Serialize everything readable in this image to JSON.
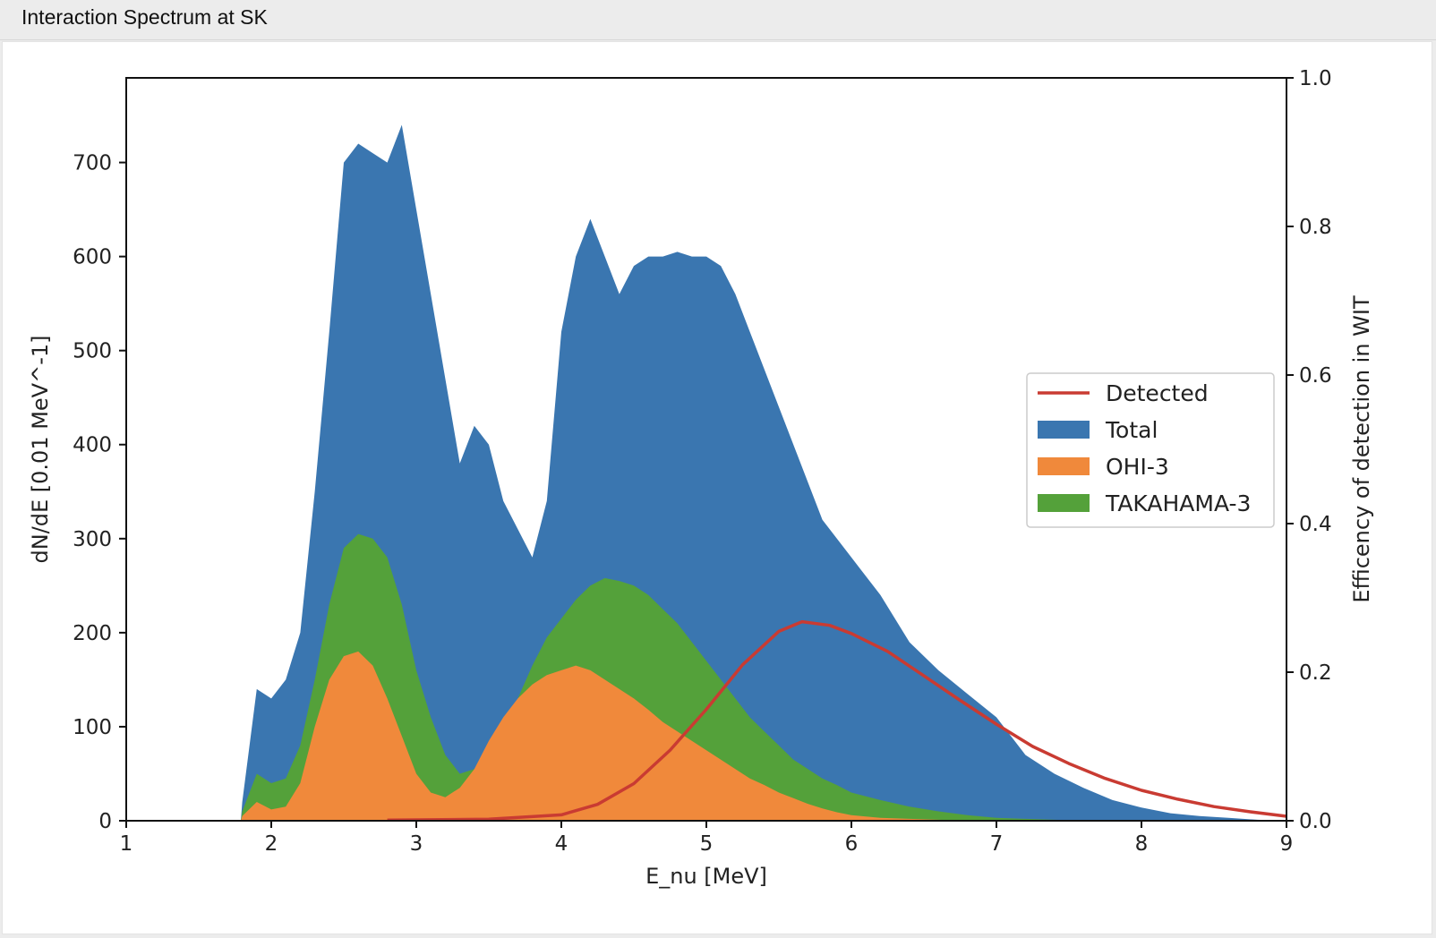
{
  "window": {
    "title": "Interaction Spectrum at SK"
  },
  "chart_data": {
    "type": "area",
    "title": "",
    "xlabel": "E_nu [MeV]",
    "ylabel": "dN/dE [0.01 MeV^-1]",
    "y2label": "Efficency of detection in WIT",
    "xlim": [
      1,
      9
    ],
    "ylim": [
      0,
      790
    ],
    "y2lim": [
      0,
      1.0
    ],
    "xticks": [
      "1",
      "2",
      "3",
      "4",
      "5",
      "6",
      "7",
      "8",
      "9"
    ],
    "yticks": [
      "0",
      "100",
      "200",
      "300",
      "400",
      "500",
      "600",
      "700"
    ],
    "y2ticks": [
      "0.0",
      "0.2",
      "0.4",
      "0.6",
      "0.8",
      "1.0"
    ],
    "grid": false,
    "legend": {
      "position": "center-right",
      "entries": [
        "Detected",
        "Total",
        "OHI-3",
        "TAKAHAMA-3"
      ]
    },
    "x": [
      1.0,
      1.79,
      1.8,
      1.9,
      2.0,
      2.1,
      2.2,
      2.3,
      2.4,
      2.5,
      2.6,
      2.7,
      2.8,
      2.9,
      3.0,
      3.1,
      3.2,
      3.3,
      3.4,
      3.5,
      3.6,
      3.7,
      3.8,
      3.9,
      4.0,
      4.1,
      4.2,
      4.3,
      4.4,
      4.5,
      4.6,
      4.7,
      4.8,
      4.9,
      5.0,
      5.1,
      5.2,
      5.3,
      5.4,
      5.5,
      5.6,
      5.7,
      5.8,
      5.9,
      6.0,
      6.2,
      6.4,
      6.6,
      6.8,
      7.0,
      7.2,
      7.4,
      7.6,
      7.8,
      8.0,
      8.2,
      8.4,
      8.6,
      8.8,
      9.0
    ],
    "series": [
      {
        "name": "Total",
        "color": "#3a76b0",
        "values": [
          0,
          0,
          20,
          140,
          130,
          150,
          200,
          350,
          520,
          700,
          720,
          710,
          700,
          740,
          650,
          560,
          470,
          380,
          420,
          400,
          340,
          310,
          280,
          340,
          520,
          600,
          640,
          600,
          560,
          590,
          600,
          600,
          605,
          600,
          600,
          590,
          560,
          520,
          480,
          440,
          400,
          360,
          320,
          300,
          280,
          240,
          190,
          160,
          135,
          110,
          70,
          50,
          35,
          22,
          14,
          8,
          5,
          3,
          1,
          0
        ]
      },
      {
        "name": "TAKAHAMA-3",
        "color": "#54a13a",
        "values": [
          0,
          0,
          10,
          50,
          40,
          45,
          80,
          150,
          230,
          290,
          305,
          300,
          280,
          230,
          160,
          110,
          70,
          50,
          55,
          75,
          100,
          130,
          165,
          195,
          215,
          235,
          250,
          258,
          255,
          250,
          240,
          225,
          210,
          190,
          170,
          150,
          130,
          110,
          95,
          80,
          65,
          55,
          45,
          38,
          30,
          22,
          15,
          10,
          6,
          3,
          2,
          1,
          0,
          0,
          0,
          0,
          0,
          0,
          0,
          0
        ]
      },
      {
        "name": "OHI-3",
        "color": "#f0893b",
        "values": [
          0,
          0,
          5,
          20,
          12,
          15,
          40,
          100,
          150,
          175,
          180,
          165,
          130,
          90,
          50,
          30,
          25,
          35,
          55,
          85,
          110,
          130,
          145,
          155,
          160,
          165,
          160,
          150,
          140,
          130,
          118,
          105,
          95,
          85,
          75,
          65,
          55,
          45,
          38,
          30,
          24,
          18,
          13,
          9,
          6,
          3,
          2,
          1,
          0,
          0,
          0,
          0,
          0,
          0,
          0,
          0,
          0,
          0,
          0,
          0
        ]
      },
      {
        "name": "Detected",
        "color": "#c93b32",
        "axis": "right",
        "x": [
          2.8,
          3.5,
          4.0,
          4.25,
          4.5,
          4.75,
          5.0,
          5.25,
          5.5,
          5.66,
          5.85,
          6.0,
          6.25,
          6.5,
          6.75,
          7.0,
          7.25,
          7.5,
          7.75,
          8.0,
          8.25,
          8.5,
          8.75,
          9.0
        ],
        "values": [
          0.001,
          0.002,
          0.008,
          0.022,
          0.05,
          0.095,
          0.15,
          0.21,
          0.255,
          0.268,
          0.263,
          0.252,
          0.228,
          0.195,
          0.162,
          0.13,
          0.1,
          0.077,
          0.057,
          0.041,
          0.029,
          0.019,
          0.012,
          0.006
        ]
      }
    ]
  }
}
